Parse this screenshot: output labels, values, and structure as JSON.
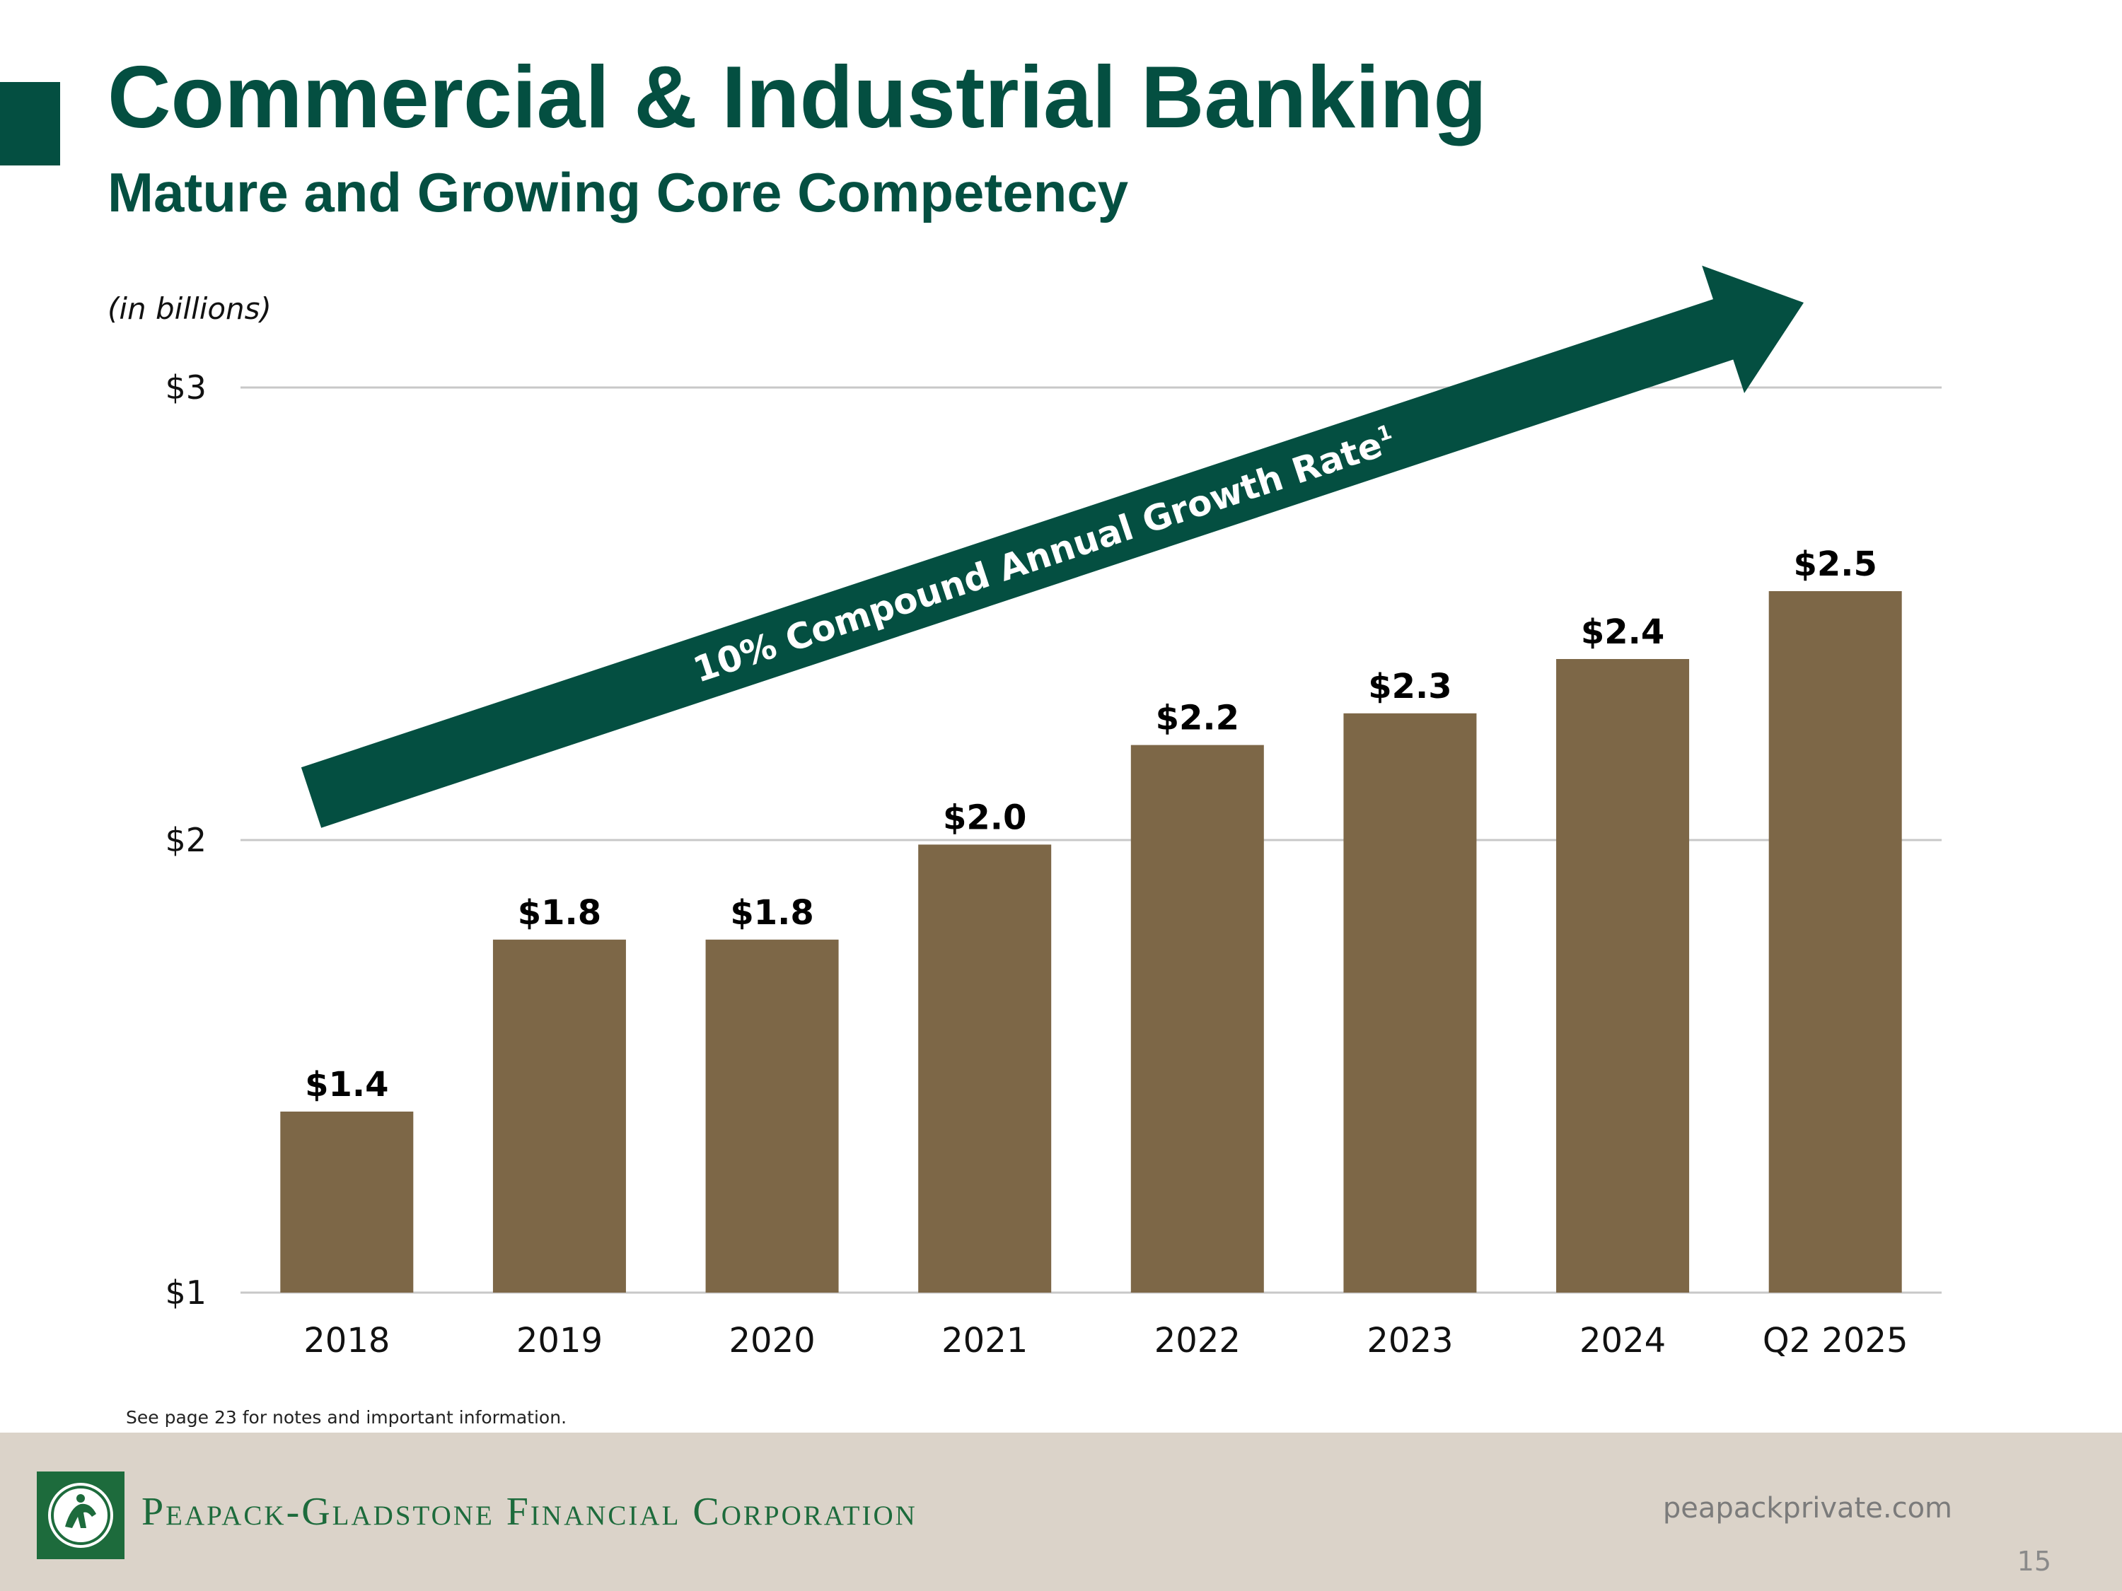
{
  "slide": {
    "title": "Commercial & Industrial Banking",
    "subtitle": "Mature and Growing Core Competency",
    "units_note": "(in billions)",
    "notes": "See page 23 for notes and important information.",
    "page_number": "15"
  },
  "footer": {
    "company": "Peapack-Gladstone Financial Corporation",
    "website": "peapackprivate.com"
  },
  "colors": {
    "brand_green": "#044f41",
    "bar": "#7d6747",
    "gridline": "#c8c8c8",
    "footer_bg": "#dbd3c9",
    "logo_green": "#1d6b3c"
  },
  "chart_data": {
    "type": "bar",
    "title": "",
    "xlabel": "",
    "ylabel": "",
    "categories": [
      "2018",
      "2019",
      "2020",
      "2021",
      "2022",
      "2023",
      "2024",
      "Q2 2025"
    ],
    "values": [
      1.4,
      1.78,
      1.78,
      1.99,
      2.21,
      2.28,
      2.4,
      2.55
    ],
    "value_labels": [
      "$1.4",
      "$1.8",
      "$1.8",
      "$2.0",
      "$2.2",
      "$2.3",
      "$2.4",
      "$2.5"
    ],
    "ylim": [
      1,
      3
    ],
    "y_ticks": [
      1,
      2,
      3
    ],
    "y_tick_labels": [
      "$1",
      "$2",
      "$3"
    ],
    "grid": true,
    "annotation": {
      "text": "10% Compound Annual Growth Rate",
      "superscript": "1"
    }
  }
}
